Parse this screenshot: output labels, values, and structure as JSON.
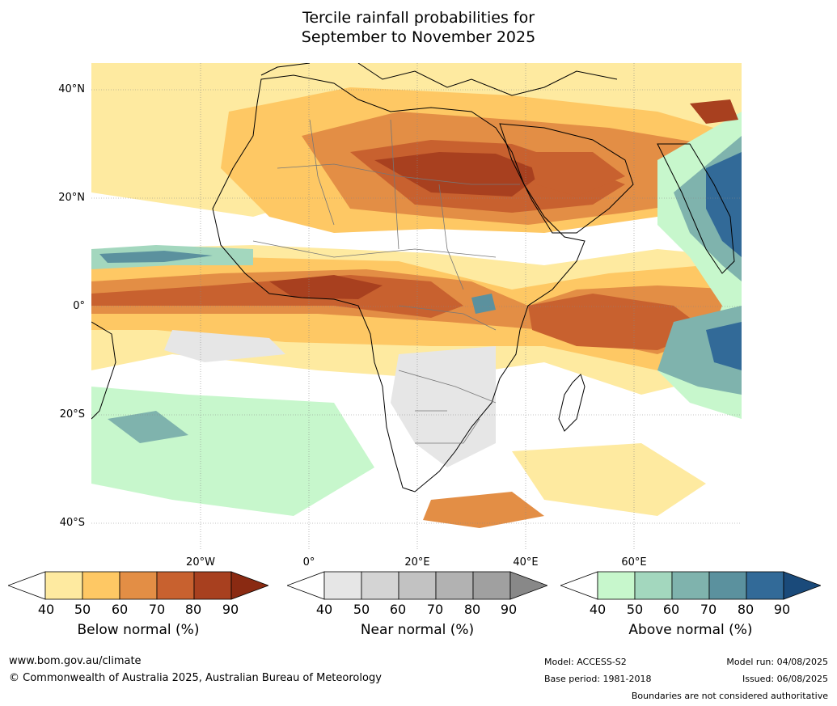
{
  "title": {
    "line1": "Tercile rainfall probabilities for",
    "line2": "September to November 2025"
  },
  "map": {
    "lat_labels": [
      "40°N",
      "20°N",
      "0°",
      "20°S",
      "40°S"
    ],
    "lon_labels": [
      "20°W",
      "0°",
      "20°E",
      "40°E",
      "60°E"
    ],
    "colors": {
      "below": [
        "#ffffff",
        "#feeaa0",
        "#fec864",
        "#e38e45",
        "#c8612f",
        "#a8401f",
        "#8a2a12"
      ],
      "near": [
        "#ffffff",
        "#e6e6e6",
        "#d4d4d4",
        "#c2c2c2",
        "#b2b2b2",
        "#a0a0a0",
        "#888888"
      ],
      "above": [
        "#ffffff",
        "#c7f7cc",
        "#a3d7be",
        "#7fb3ad",
        "#5b919e",
        "#326a98",
        "#1a4a7a"
      ]
    }
  },
  "colorbars": [
    {
      "label": "Below normal (%)",
      "ticks": [
        "40",
        "50",
        "60",
        "70",
        "80",
        "90"
      ]
    },
    {
      "label": "Near normal (%)",
      "ticks": [
        "40",
        "50",
        "60",
        "70",
        "80",
        "90"
      ]
    },
    {
      "label": "Above normal (%)",
      "ticks": [
        "40",
        "50",
        "60",
        "70",
        "80",
        "90"
      ]
    }
  ],
  "footer": {
    "url": "www.bom.gov.au/climate",
    "copyright": "© Commonwealth of Australia 2025, Australian Bureau of Meteorology",
    "model": "Model: ACCESS-S2",
    "base_period": "Base period: 1981-2018",
    "model_run": "Model run: 04/08/2025",
    "issued": "Issued: 06/08/2025",
    "disclaimer": "Boundaries are not considered authoritative"
  }
}
